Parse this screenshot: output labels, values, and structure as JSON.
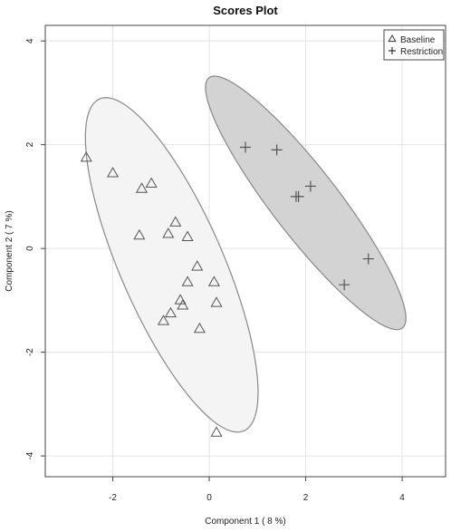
{
  "chart_data": {
    "type": "scatter",
    "title": "Scores Plot",
    "xlabel": "Component 1 ( 8 %)",
    "ylabel": "Component 2 ( 7 %)",
    "xlim": [
      -3.4,
      4.9
    ],
    "ylim": [
      -4.4,
      4.3
    ],
    "xticks": [
      -2,
      0,
      2,
      4
    ],
    "yticks": [
      -4,
      -2,
      0,
      2,
      4
    ],
    "xtick_labels": [
      "-2",
      "0",
      "2",
      "4"
    ],
    "ytick_labels": [
      "-4",
      "-2",
      "0",
      "2",
      "4"
    ],
    "grid": true,
    "legend_position": "top-right",
    "series": [
      {
        "name": "Baseline",
        "marker": "triangle",
        "color": "#555555",
        "ellipse_fill": "#f4f4f4",
        "points": [
          {
            "x": -2.55,
            "y": 1.75
          },
          {
            "x": -2.0,
            "y": 1.45
          },
          {
            "x": -1.2,
            "y": 1.25
          },
          {
            "x": -1.4,
            "y": 1.15
          },
          {
            "x": -0.7,
            "y": 0.5
          },
          {
            "x": -0.85,
            "y": 0.28
          },
          {
            "x": -1.45,
            "y": 0.25
          },
          {
            "x": -0.45,
            "y": 0.22
          },
          {
            "x": -0.25,
            "y": -0.35
          },
          {
            "x": -0.45,
            "y": -0.65
          },
          {
            "x": 0.1,
            "y": -0.65
          },
          {
            "x": -0.6,
            "y": -1.0
          },
          {
            "x": -0.55,
            "y": -1.1
          },
          {
            "x": 0.15,
            "y": -1.05
          },
          {
            "x": -0.8,
            "y": -1.25
          },
          {
            "x": -0.95,
            "y": -1.4
          },
          {
            "x": -0.2,
            "y": -1.55
          },
          {
            "x": 0.15,
            "y": -3.55
          }
        ]
      },
      {
        "name": "Restriction",
        "marker": "plus",
        "color": "#555555",
        "ellipse_fill": "#d3d3d3",
        "points": [
          {
            "x": 0.75,
            "y": 1.95
          },
          {
            "x": 1.4,
            "y": 1.9
          },
          {
            "x": 2.1,
            "y": 1.2
          },
          {
            "x": 1.8,
            "y": 1.0
          },
          {
            "x": 1.85,
            "y": 1.0
          },
          {
            "x": 3.3,
            "y": -0.2
          },
          {
            "x": 2.8,
            "y": -0.7
          }
        ]
      }
    ]
  }
}
